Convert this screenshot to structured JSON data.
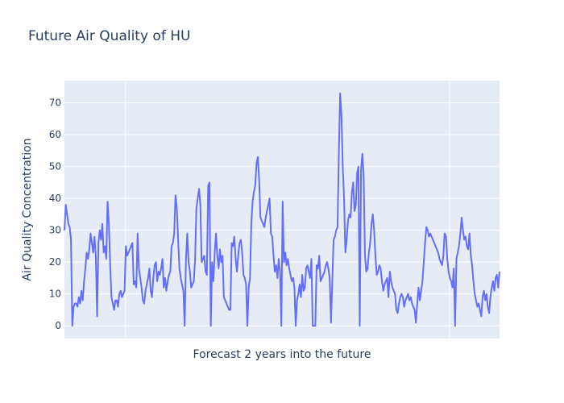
{
  "chart_data": {
    "type": "line",
    "title": "Future Air Quality of HU",
    "xlabel": "Forecast 2 years into the future",
    "ylabel": "Air Quality Concentration",
    "ylim": [
      -4,
      77
    ],
    "yticks": [
      0,
      10,
      20,
      30,
      40,
      50,
      60,
      70
    ],
    "x_tick_labels_visible": false,
    "grid": true,
    "background": "#e5ecf6",
    "line_color": "#636efa",
    "series": [
      {
        "values": [
          30,
          38,
          35,
          32,
          31,
          27,
          0,
          6,
          7,
          7,
          6,
          9,
          7,
          11,
          8,
          14,
          18,
          23,
          21,
          24,
          29,
          26,
          23,
          28,
          22,
          3,
          26,
          30,
          27,
          32,
          23,
          25,
          21,
          39,
          32,
          19,
          9,
          7,
          5,
          8,
          8,
          6,
          10,
          11,
          9,
          10,
          11,
          25,
          22,
          23,
          24,
          25,
          26,
          13,
          14,
          12,
          29,
          18,
          15,
          12,
          8,
          7,
          11,
          13,
          15,
          18,
          11,
          9,
          15,
          19,
          20,
          14,
          17,
          16,
          18,
          21,
          12,
          15,
          11,
          14,
          16,
          17,
          25,
          26,
          29,
          41,
          37,
          27,
          18,
          15,
          13,
          11,
          0,
          21,
          29,
          20,
          17,
          12,
          13,
          14,
          21,
          37,
          40,
          43,
          38,
          20,
          21,
          22,
          17,
          16,
          44,
          45,
          0,
          20,
          14,
          23,
          29,
          22,
          18,
          24,
          20,
          22,
          9,
          8,
          7,
          6,
          5,
          5,
          26,
          25,
          28,
          21,
          17,
          22,
          26,
          27,
          23,
          16,
          15,
          13,
          0,
          12,
          15,
          32,
          39,
          42,
          44,
          51,
          53,
          46,
          34,
          33,
          32,
          31,
          34,
          36,
          38,
          40,
          29,
          28,
          22,
          17,
          19,
          15,
          21,
          17,
          0,
          39,
          20,
          23,
          19,
          21,
          18,
          16,
          14,
          15,
          12,
          0,
          8,
          10,
          13,
          9,
          16,
          11,
          12,
          18,
          19,
          17,
          15,
          21,
          0,
          0,
          0,
          19,
          18,
          22,
          14,
          15,
          16,
          17,
          19,
          20,
          18,
          15,
          1,
          14,
          27,
          28,
          30,
          31,
          54,
          73,
          66,
          50,
          40,
          23,
          27,
          33,
          35,
          34,
          42,
          45,
          36,
          38,
          48,
          50,
          0,
          49,
          54,
          47,
          22,
          17,
          18,
          23,
          26,
          32,
          35,
          30,
          22,
          16,
          17,
          19,
          18,
          14,
          11,
          13,
          14,
          15,
          9,
          17,
          14,
          12,
          11,
          10,
          5,
          4,
          7,
          9,
          10,
          9,
          6,
          8,
          9,
          10,
          8,
          9,
          7,
          6,
          5,
          1,
          7,
          12,
          8,
          11,
          14,
          20,
          26,
          31,
          30,
          28,
          29,
          28,
          27,
          26,
          25,
          24,
          23,
          21,
          20,
          19,
          22,
          29,
          28,
          21,
          17,
          15,
          14,
          12,
          18,
          0,
          21,
          23,
          25,
          29,
          34,
          30,
          27,
          28,
          25,
          24,
          29,
          22,
          19,
          14,
          10,
          8,
          6,
          7,
          5,
          3,
          9,
          11,
          8,
          10,
          6,
          4,
          9,
          12,
          14,
          11,
          15,
          16,
          12,
          17
        ]
      }
    ]
  }
}
